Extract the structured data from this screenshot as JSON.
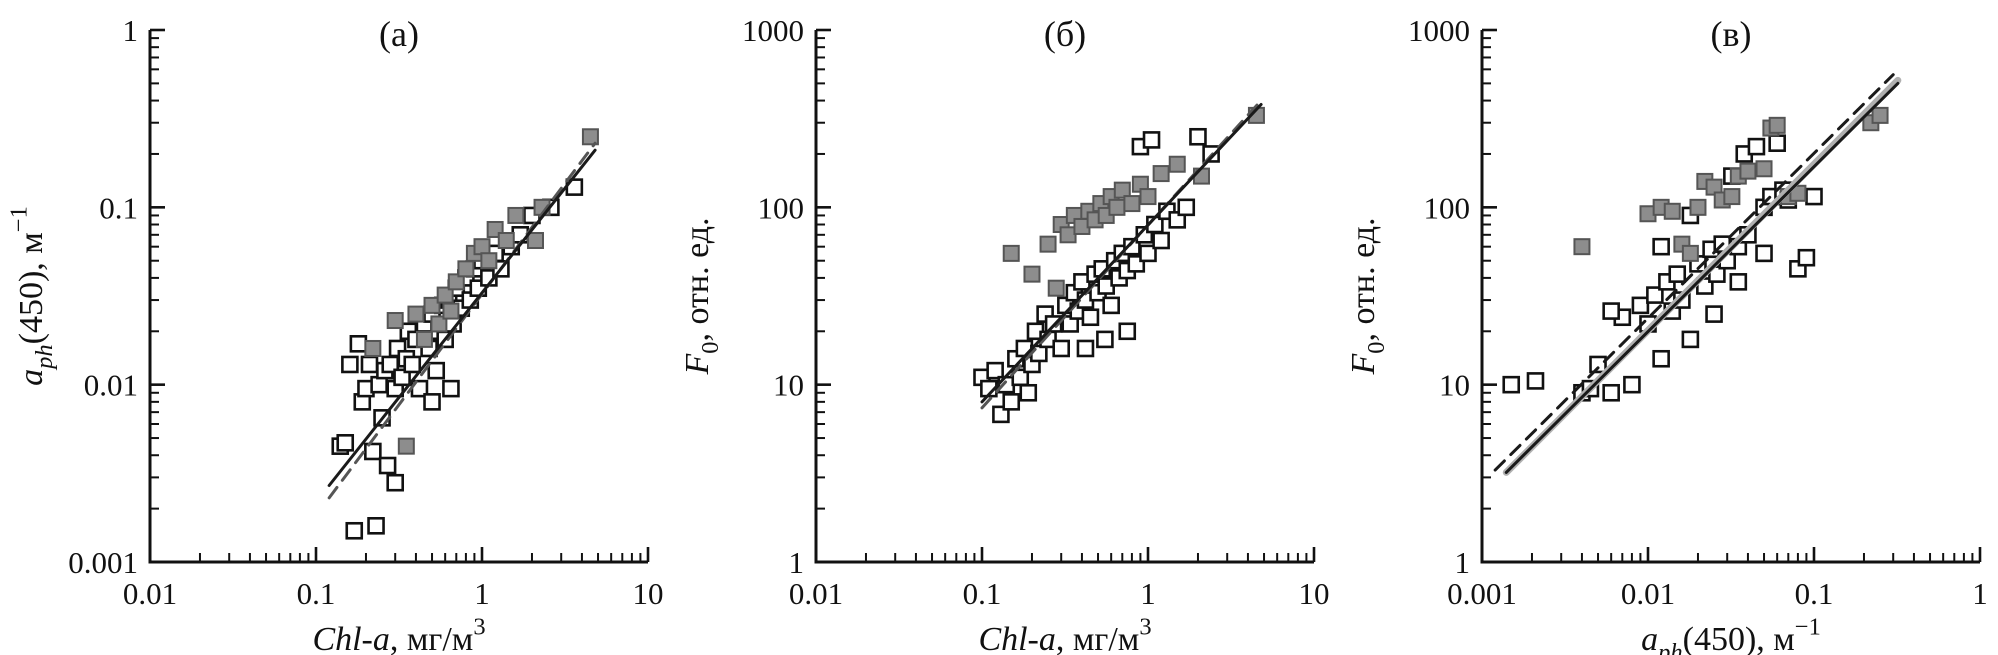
{
  "page": {
    "background": "#ffffff",
    "figure_name": "bio-optical-scatter-figure"
  },
  "chart_data": [
    {
      "type": "scatter",
      "title": "(а)",
      "xlabel": "*Chl-a*, мг/м^{3}",
      "ylabel": "*a*_{*ph*}(450), м^{−1}",
      "xscale": "log",
      "yscale": "log",
      "xlim": [
        0.01,
        10
      ],
      "ylim": [
        0.001,
        1
      ],
      "xticks": [
        0.01,
        0.1,
        1,
        10
      ],
      "yticks": [
        0.001,
        0.01,
        0.1,
        1
      ],
      "grid": false,
      "legend": "none",
      "series": [
        {
          "name": "open-squares",
          "marker": "open-square",
          "points": [
            [
              0.14,
              0.0045
            ],
            [
              0.15,
              0.0047
            ],
            [
              0.16,
              0.013
            ],
            [
              0.17,
              0.0015
            ],
            [
              0.18,
              0.017
            ],
            [
              0.19,
              0.008
            ],
            [
              0.2,
              0.0095
            ],
            [
              0.21,
              0.013
            ],
            [
              0.22,
              0.0042
            ],
            [
              0.23,
              0.0016
            ],
            [
              0.24,
              0.01
            ],
            [
              0.25,
              0.0065
            ],
            [
              0.26,
              0.012
            ],
            [
              0.27,
              0.0035
            ],
            [
              0.28,
              0.013
            ],
            [
              0.3,
              0.0095
            ],
            [
              0.31,
              0.016
            ],
            [
              0.33,
              0.011
            ],
            [
              0.35,
              0.014
            ],
            [
              0.36,
              0.02
            ],
            [
              0.38,
              0.013
            ],
            [
              0.4,
              0.018
            ],
            [
              0.42,
              0.0095
            ],
            [
              0.45,
              0.022
            ],
            [
              0.48,
              0.016
            ],
            [
              0.5,
              0.025
            ],
            [
              0.53,
              0.012
            ],
            [
              0.55,
              0.02
            ],
            [
              0.58,
              0.028
            ],
            [
              0.6,
              0.018
            ],
            [
              0.63,
              0.03
            ],
            [
              0.67,
              0.022
            ],
            [
              0.7,
              0.035
            ],
            [
              0.75,
              0.027
            ],
            [
              0.8,
              0.04
            ],
            [
              0.85,
              0.03
            ],
            [
              0.9,
              0.045
            ],
            [
              0.95,
              0.035
            ],
            [
              1.0,
              0.05
            ],
            [
              1.1,
              0.04
            ],
            [
              1.2,
              0.055
            ],
            [
              1.3,
              0.045
            ],
            [
              1.5,
              0.06
            ],
            [
              1.7,
              0.07
            ],
            [
              2.0,
              0.09
            ],
            [
              2.6,
              0.1
            ],
            [
              3.6,
              0.13
            ],
            [
              0.5,
              0.008
            ],
            [
              0.65,
              0.0095
            ],
            [
              0.3,
              0.0028
            ]
          ]
        },
        {
          "name": "filled-squares",
          "marker": "filled-square",
          "points": [
            [
              0.22,
              0.016
            ],
            [
              0.3,
              0.023
            ],
            [
              0.35,
              0.0045
            ],
            [
              0.4,
              0.025
            ],
            [
              0.45,
              0.018
            ],
            [
              0.5,
              0.028
            ],
            [
              0.55,
              0.022
            ],
            [
              0.6,
              0.032
            ],
            [
              0.65,
              0.026
            ],
            [
              0.7,
              0.038
            ],
            [
              0.8,
              0.045
            ],
            [
              0.9,
              0.055
            ],
            [
              1.0,
              0.06
            ],
            [
              1.1,
              0.05
            ],
            [
              1.2,
              0.075
            ],
            [
              1.4,
              0.065
            ],
            [
              1.6,
              0.09
            ],
            [
              2.1,
              0.065
            ],
            [
              2.3,
              0.1
            ],
            [
              4.5,
              0.25
            ]
          ]
        }
      ],
      "lines": [
        {
          "name": "regression-dashed",
          "style": "dashed",
          "color": "#555555",
          "width": 3,
          "from": [
            0.12,
            0.0023
          ],
          "to": [
            4.8,
            0.23
          ]
        },
        {
          "name": "regression-solid",
          "style": "solid",
          "color": "#1a1a1a",
          "width": 3,
          "from": [
            0.12,
            0.0027
          ],
          "to": [
            4.8,
            0.21
          ]
        }
      ]
    },
    {
      "type": "scatter",
      "title": "(б)",
      "xlabel": "*Chl-a*, мг/м^{3}",
      "ylabel": "*F*_{0}, отн. ед.",
      "xscale": "log",
      "yscale": "log",
      "xlim": [
        0.01,
        10
      ],
      "ylim": [
        1,
        1000
      ],
      "xticks": [
        0.01,
        0.1,
        1,
        10
      ],
      "yticks": [
        1,
        10,
        100,
        1000
      ],
      "grid": false,
      "legend": "none",
      "series": [
        {
          "name": "open-squares",
          "marker": "open-square",
          "points": [
            [
              0.1,
              11
            ],
            [
              0.11,
              9.5
            ],
            [
              0.12,
              12
            ],
            [
              0.13,
              6.8
            ],
            [
              0.14,
              10
            ],
            [
              0.15,
              8
            ],
            [
              0.16,
              14
            ],
            [
              0.17,
              11
            ],
            [
              0.18,
              16
            ],
            [
              0.19,
              9
            ],
            [
              0.2,
              13
            ],
            [
              0.21,
              20
            ],
            [
              0.22,
              15
            ],
            [
              0.24,
              25
            ],
            [
              0.25,
              18
            ],
            [
              0.27,
              22
            ],
            [
              0.3,
              16
            ],
            [
              0.32,
              28
            ],
            [
              0.34,
              22
            ],
            [
              0.36,
              33
            ],
            [
              0.38,
              26
            ],
            [
              0.4,
              38
            ],
            [
              0.42,
              30
            ],
            [
              0.45,
              24
            ],
            [
              0.48,
              42
            ],
            [
              0.5,
              33
            ],
            [
              0.53,
              45
            ],
            [
              0.56,
              36
            ],
            [
              0.6,
              28
            ],
            [
              0.63,
              50
            ],
            [
              0.67,
              40
            ],
            [
              0.7,
              55
            ],
            [
              0.75,
              44
            ],
            [
              0.8,
              60
            ],
            [
              0.85,
              48
            ],
            [
              0.9,
              220
            ],
            [
              0.95,
              70
            ],
            [
              1.0,
              55
            ],
            [
              1.05,
              240
            ],
            [
              1.1,
              80
            ],
            [
              1.2,
              65
            ],
            [
              1.3,
              95
            ],
            [
              1.5,
              85
            ],
            [
              1.7,
              100
            ],
            [
              2.0,
              250
            ],
            [
              2.4,
              200
            ],
            [
              0.55,
              18
            ],
            [
              0.75,
              20
            ],
            [
              0.42,
              16
            ]
          ]
        },
        {
          "name": "filled-squares",
          "marker": "filled-square",
          "points": [
            [
              0.15,
              55
            ],
            [
              0.2,
              42
            ],
            [
              0.25,
              62
            ],
            [
              0.28,
              35
            ],
            [
              0.3,
              80
            ],
            [
              0.33,
              70
            ],
            [
              0.36,
              90
            ],
            [
              0.4,
              78
            ],
            [
              0.44,
              95
            ],
            [
              0.48,
              85
            ],
            [
              0.52,
              105
            ],
            [
              0.56,
              90
            ],
            [
              0.6,
              115
            ],
            [
              0.65,
              100
            ],
            [
              0.7,
              125
            ],
            [
              0.8,
              105
            ],
            [
              0.9,
              135
            ],
            [
              1.0,
              115
            ],
            [
              1.2,
              155
            ],
            [
              1.5,
              175
            ],
            [
              2.1,
              150
            ],
            [
              4.5,
              330
            ]
          ]
        }
      ],
      "lines": [
        {
          "name": "regression-dashed",
          "style": "dashed",
          "color": "#555555",
          "width": 3,
          "from": [
            0.1,
            7.4
          ],
          "to": [
            4.8,
            400
          ]
        },
        {
          "name": "regression-solid",
          "style": "solid",
          "color": "#1a1a1a",
          "width": 3,
          "from": [
            0.1,
            8
          ],
          "to": [
            4.8,
            380
          ]
        }
      ]
    },
    {
      "type": "scatter",
      "title": "(в)",
      "xlabel": "*a*_{*ph*}(450), м^{−1}",
      "ylabel": "*F*_{0}, отн. ед.",
      "xscale": "log",
      "yscale": "log",
      "xlim": [
        0.001,
        1
      ],
      "ylim": [
        1,
        1000
      ],
      "xticks": [
        0.001,
        0.01,
        0.1,
        1
      ],
      "yticks": [
        1,
        10,
        100,
        1000
      ],
      "grid": false,
      "legend": "none",
      "series": [
        {
          "name": "open-squares",
          "marker": "open-square",
          "points": [
            [
              0.0015,
              10
            ],
            [
              0.0021,
              10.5
            ],
            [
              0.004,
              9
            ],
            [
              0.0045,
              9.5
            ],
            [
              0.005,
              13
            ],
            [
              0.006,
              9
            ],
            [
              0.007,
              24
            ],
            [
              0.008,
              10
            ],
            [
              0.009,
              28
            ],
            [
              0.01,
              22
            ],
            [
              0.011,
              32
            ],
            [
              0.012,
              14
            ],
            [
              0.013,
              38
            ],
            [
              0.014,
              26
            ],
            [
              0.015,
              42
            ],
            [
              0.016,
              30
            ],
            [
              0.018,
              18
            ],
            [
              0.02,
              48
            ],
            [
              0.022,
              36
            ],
            [
              0.024,
              58
            ],
            [
              0.026,
              42
            ],
            [
              0.028,
              62
            ],
            [
              0.03,
              50
            ],
            [
              0.032,
              150
            ],
            [
              0.035,
              60
            ],
            [
              0.038,
              200
            ],
            [
              0.04,
              70
            ],
            [
              0.045,
              220
            ],
            [
              0.05,
              100
            ],
            [
              0.055,
              115
            ],
            [
              0.06,
              230
            ],
            [
              0.065,
              125
            ],
            [
              0.07,
              110
            ],
            [
              0.08,
              45
            ],
            [
              0.09,
              52
            ],
            [
              0.1,
              115
            ],
            [
              0.025,
              25
            ],
            [
              0.018,
              90
            ],
            [
              0.012,
              60
            ],
            [
              0.006,
              26
            ],
            [
              0.035,
              38
            ],
            [
              0.05,
              55
            ]
          ]
        },
        {
          "name": "filled-squares",
          "marker": "filled-square",
          "points": [
            [
              0.004,
              60
            ],
            [
              0.01,
              92
            ],
            [
              0.012,
              100
            ],
            [
              0.014,
              95
            ],
            [
              0.016,
              62
            ],
            [
              0.018,
              55
            ],
            [
              0.02,
              100
            ],
            [
              0.022,
              140
            ],
            [
              0.025,
              130
            ],
            [
              0.028,
              110
            ],
            [
              0.032,
              115
            ],
            [
              0.035,
              150
            ],
            [
              0.04,
              160
            ],
            [
              0.05,
              165
            ],
            [
              0.055,
              280
            ],
            [
              0.06,
              290
            ],
            [
              0.07,
              115
            ],
            [
              0.08,
              120
            ],
            [
              0.22,
              300
            ],
            [
              0.25,
              330
            ]
          ]
        }
      ],
      "lines": [
        {
          "name": "regression-gray",
          "style": "solid",
          "color": "#b0b0b0",
          "width": 7,
          "from": [
            0.0014,
            3.2
          ],
          "to": [
            0.32,
            520
          ]
        },
        {
          "name": "regression-dashed",
          "style": "dashed",
          "color": "#1a1a1a",
          "width": 3,
          "from": [
            0.0012,
            3.3
          ],
          "to": [
            0.3,
            560
          ]
        },
        {
          "name": "regression-solid",
          "style": "solid",
          "color": "#1a1a1a",
          "width": 3,
          "from": [
            0.0014,
            3.2
          ],
          "to": [
            0.32,
            500
          ]
        }
      ]
    }
  ]
}
